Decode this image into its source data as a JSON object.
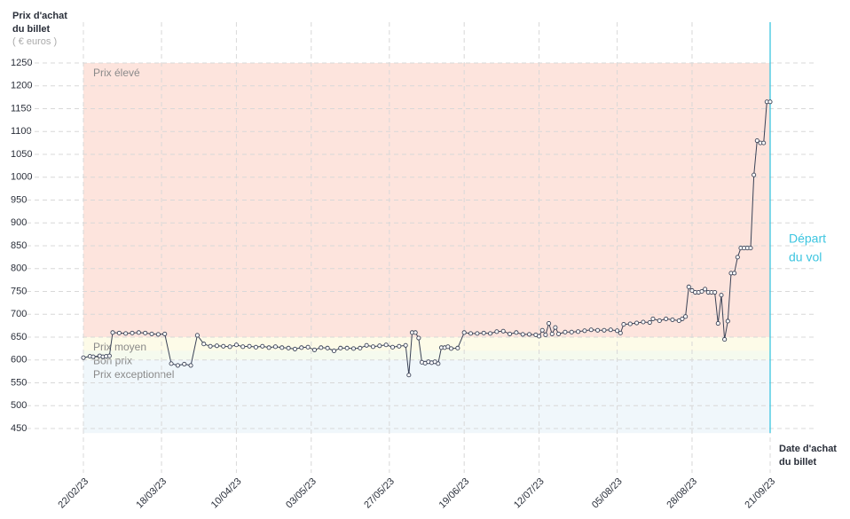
{
  "chart_data": {
    "type": "line",
    "y_title": [
      "Prix d'achat",
      "du billet"
    ],
    "y_unit": "( € euros )",
    "x_title": [
      "Date d'achat",
      "du billet"
    ],
    "departure": {
      "label": [
        "Départ",
        "du vol"
      ],
      "x": "2023-09-21",
      "color": "#3cc5e0"
    },
    "bands": [
      {
        "label": "Prix élevé",
        "range": [
          650,
          1250
        ],
        "color": "#fde4dd"
      },
      {
        "label": "Prix moyen",
        "range": [
          620,
          650
        ],
        "color": "#fdfbe8"
      },
      {
        "label": "Bon prix",
        "range": [
          600,
          620
        ],
        "color": "#f5faee"
      },
      {
        "label": "Prix exceptionnel",
        "range": [
          440,
          600
        ],
        "color": "#f0f7fb"
      }
    ],
    "xlim": [
      "2023-02-22",
      "2023-09-21"
    ],
    "xticks": [
      {
        "value": "2023-02-22",
        "label": "22/02/23"
      },
      {
        "value": "2023-03-18",
        "label": "18/03/23"
      },
      {
        "value": "2023-04-10",
        "label": "10/04/23"
      },
      {
        "value": "2023-05-03",
        "label": "03/05/23"
      },
      {
        "value": "2023-05-27",
        "label": "27/05/23"
      },
      {
        "value": "2023-06-19",
        "label": "19/06/23"
      },
      {
        "value": "2023-07-12",
        "label": "12/07/23"
      },
      {
        "value": "2023-08-05",
        "label": "05/08/23"
      },
      {
        "value": "2023-08-28",
        "label": "28/08/23"
      },
      {
        "value": "2023-09-21",
        "label": "21/09/23"
      }
    ],
    "ylim": [
      450,
      1250
    ],
    "yticks": [
      450,
      500,
      550,
      600,
      650,
      700,
      750,
      800,
      850,
      900,
      950,
      1000,
      1050,
      1100,
      1150,
      1200,
      1250
    ],
    "grid": true,
    "series": [
      {
        "color": "#3a4256",
        "x": [
          "2023-02-22",
          "2023-02-24",
          "2023-02-25",
          "2023-02-27",
          "2023-02-28",
          "2023-03-01",
          "2023-03-02",
          "2023-03-03",
          "2023-03-05",
          "2023-03-07",
          "2023-03-09",
          "2023-03-11",
          "2023-03-13",
          "2023-03-15",
          "2023-03-17",
          "2023-03-19",
          "2023-03-21",
          "2023-03-23",
          "2023-03-25",
          "2023-03-27",
          "2023-03-29",
          "2023-03-31",
          "2023-04-02",
          "2023-04-04",
          "2023-04-06",
          "2023-04-08",
          "2023-04-10",
          "2023-04-12",
          "2023-04-14",
          "2023-04-16",
          "2023-04-18",
          "2023-04-20",
          "2023-04-22",
          "2023-04-24",
          "2023-04-26",
          "2023-04-28",
          "2023-04-30",
          "2023-05-02",
          "2023-05-04",
          "2023-05-06",
          "2023-05-08",
          "2023-05-10",
          "2023-05-12",
          "2023-05-14",
          "2023-05-16",
          "2023-05-18",
          "2023-05-20",
          "2023-05-22",
          "2023-05-24",
          "2023-05-26",
          "2023-05-28",
          "2023-05-30",
          "2023-06-01",
          "2023-06-02",
          "2023-06-03",
          "2023-06-04",
          "2023-06-05",
          "2023-06-06",
          "2023-06-07",
          "2023-06-08",
          "2023-06-09",
          "2023-06-10",
          "2023-06-11",
          "2023-06-12",
          "2023-06-13",
          "2023-06-14",
          "2023-06-15",
          "2023-06-17",
          "2023-06-19",
          "2023-06-21",
          "2023-06-23",
          "2023-06-25",
          "2023-06-27",
          "2023-06-29",
          "2023-07-01",
          "2023-07-03",
          "2023-07-05",
          "2023-07-07",
          "2023-07-09",
          "2023-07-11",
          "2023-07-12",
          "2023-07-13",
          "2023-07-14",
          "2023-07-15",
          "2023-07-16",
          "2023-07-17",
          "2023-07-18",
          "2023-07-20",
          "2023-07-22",
          "2023-07-24",
          "2023-07-26",
          "2023-07-28",
          "2023-07-30",
          "2023-08-01",
          "2023-08-03",
          "2023-08-05",
          "2023-08-06",
          "2023-08-07",
          "2023-08-09",
          "2023-08-11",
          "2023-08-13",
          "2023-08-15",
          "2023-08-16",
          "2023-08-18",
          "2023-08-20",
          "2023-08-22",
          "2023-08-24",
          "2023-08-25",
          "2023-08-26",
          "2023-08-27",
          "2023-08-28",
          "2023-08-29",
          "2023-08-30",
          "2023-08-31",
          "2023-09-01",
          "2023-09-02",
          "2023-09-03",
          "2023-09-04",
          "2023-09-05",
          "2023-09-06",
          "2023-09-07",
          "2023-09-08",
          "2023-09-09",
          "2023-09-10",
          "2023-09-11",
          "2023-09-12",
          "2023-09-13",
          "2023-09-14",
          "2023-09-15",
          "2023-09-16",
          "2023-09-17",
          "2023-09-18",
          "2023-09-19",
          "2023-09-20",
          "2023-09-21"
        ],
        "values": [
          605,
          608,
          607,
          609,
          607,
          608,
          609,
          660,
          659,
          658,
          659,
          660,
          659,
          657,
          656,
          657,
          592,
          588,
          591,
          588,
          654,
          635,
          630,
          631,
          630,
          629,
          633,
          629,
          630,
          628,
          630,
          627,
          629,
          627,
          626,
          624,
          627,
          628,
          622,
          627,
          626,
          620,
          626,
          626,
          625,
          626,
          632,
          629,
          631,
          633,
          628,
          630,
          632,
          567,
          660,
          660,
          648,
          595,
          593,
          596,
          594,
          596,
          592,
          627,
          627,
          629,
          625,
          626,
          660,
          658,
          658,
          659,
          658,
          662,
          663,
          657,
          660,
          656,
          656,
          655,
          652,
          665,
          655,
          680,
          657,
          671,
          657,
          661,
          661,
          662,
          664,
          666,
          665,
          665,
          666,
          664,
          659,
          678,
          679,
          681,
          683,
          682,
          690,
          686,
          690,
          688,
          686,
          690,
          695,
          760,
          752,
          748,
          748,
          750,
          755,
          748,
          748,
          748,
          680,
          742,
          645,
          685,
          790,
          790,
          825,
          845,
          845,
          845,
          845,
          1005,
          1080,
          1075,
          1075,
          1165,
          1165
        ]
      }
    ]
  }
}
